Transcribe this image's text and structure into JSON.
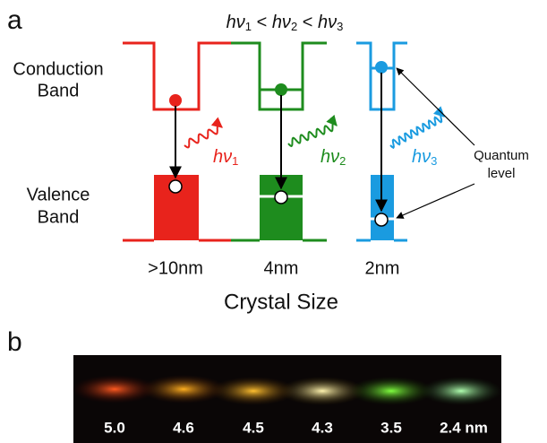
{
  "panel_a": {
    "label": "a",
    "relation": [
      "hν",
      "1",
      " < ",
      "hν",
      "2",
      " < ",
      "hν",
      "3"
    ],
    "conduction_band": [
      "Conduction",
      "Band"
    ],
    "valence_band": [
      "Valence",
      "Band"
    ],
    "photons": [
      {
        "base": "hν",
        "sub": "1"
      },
      {
        "base": "hν",
        "sub": "2"
      },
      {
        "base": "hν",
        "sub": "3"
      }
    ],
    "quantum_level": [
      "Quantum",
      "level"
    ],
    "sizes": [
      ">10nm",
      "4nm",
      "2nm"
    ],
    "axis_title": "Crystal Size"
  },
  "panel_b": {
    "label": "b",
    "vial_labels": [
      "5.0",
      "4.6",
      "4.5",
      "4.3",
      "3.5",
      "2.4 nm"
    ]
  }
}
